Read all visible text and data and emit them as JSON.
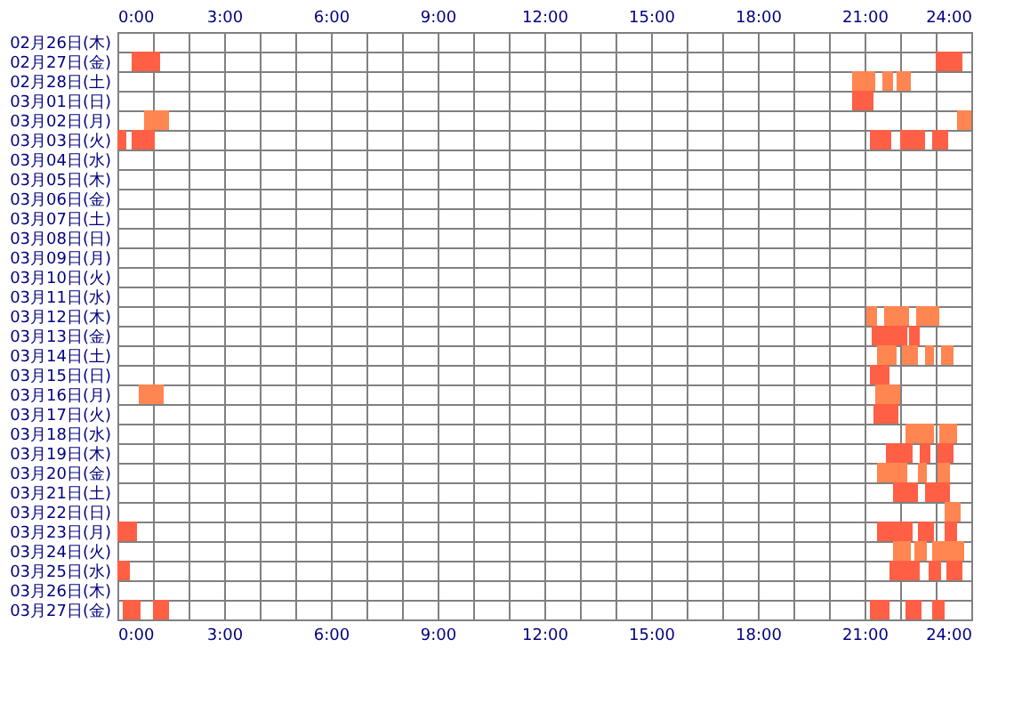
{
  "chart_data": {
    "type": "bar",
    "orientation": "horizontal",
    "grid": true,
    "categories": [
      "02月26日(木)",
      "02月27日(金)",
      "02月28日(土)",
      "03月01日(日)",
      "03月02日(月)",
      "03月03日(火)",
      "03月04日(水)",
      "03月05日(木)",
      "03月06日(金)",
      "03月07日(土)",
      "03月08日(日)",
      "03月09日(月)",
      "03月10日(火)",
      "03月11日(水)",
      "03月12日(木)",
      "03月13日(金)",
      "03月14日(土)",
      "03月15日(日)",
      "03月16日(月)",
      "03月17日(火)",
      "03月18日(水)",
      "03月19日(木)",
      "03月20日(金)",
      "03月21日(土)",
      "03月22日(日)",
      "03月23日(月)",
      "03月24日(火)",
      "03月25日(水)",
      "03月26日(木)",
      "03月27日(金)"
    ],
    "series": [
      {
        "base": [
          null,
          0.4,
          20.65,
          20.65,
          0.75,
          0,
          null,
          null,
          null,
          null,
          null,
          null,
          null,
          null,
          21.05,
          21.2,
          21.35,
          21.15,
          0.6,
          21.25,
          22.15,
          21.6,
          21.35,
          21.8,
          23.25,
          0,
          21.8,
          0,
          null,
          0.15
        ],
        "values": [
          null,
          0.8,
          0.65,
          0.6,
          0.7,
          0.25,
          null,
          null,
          null,
          null,
          null,
          null,
          null,
          null,
          0.3,
          1.0,
          0.55,
          0.55,
          0.7,
          0.7,
          0.8,
          0.75,
          0.85,
          0.7,
          0.45,
          0.55,
          0.5,
          0.35,
          null,
          0.5
        ],
        "colors": [
          "#ff5f45",
          "#ff5f45",
          "#ff8551",
          "#ff5f45",
          "#ff8551",
          "#ff5f45",
          "#ff5f45",
          "#ff5f45",
          "#ff5f45",
          "#ff5f45",
          "#ff5f45",
          "#ff5f45",
          "#ff5f45",
          "#ff5f45",
          "#ff8551",
          "#ff5f45",
          "#ff8551",
          "#ff5f45",
          "#ff8551",
          "#ff5f45",
          "#ff8551",
          "#ff5f45",
          "#ff8551",
          "#ff5f45",
          "#ff8551",
          "#ff5f45",
          "#ff8551",
          "#ff5f45",
          "#ff5f45",
          "#ff5f45"
        ]
      },
      {
        "base": [
          null,
          23.0,
          21.5,
          null,
          23.6,
          0.4,
          null,
          null,
          null,
          null,
          null,
          null,
          null,
          null,
          21.55,
          22.25,
          22.05,
          null,
          21.3,
          null,
          23.1,
          22.55,
          22.5,
          22.7,
          null,
          21.35,
          22.4,
          21.7,
          null,
          1.0
        ],
        "values": [
          null,
          0.75,
          0.3,
          null,
          0.4,
          0.65,
          null,
          null,
          null,
          null,
          null,
          null,
          null,
          null,
          0.7,
          0.3,
          0.45,
          null,
          0.7,
          null,
          0.5,
          0.3,
          0.25,
          0.7,
          null,
          1.0,
          0.35,
          0.85,
          null,
          0.45
        ],
        "colors": [
          "#ff5f45",
          "#ff5f45",
          "#ff8551",
          "#ff5f45",
          "#ff8551",
          "#ff5f45",
          "#ff5f45",
          "#ff5f45",
          "#ff5f45",
          "#ff5f45",
          "#ff5f45",
          "#ff5f45",
          "#ff5f45",
          "#ff5f45",
          "#ff8551",
          "#ff5f45",
          "#ff8551",
          "#ff5f45",
          "#ff8551",
          "#ff5f45",
          "#ff8551",
          "#ff5f45",
          "#ff8551",
          "#ff5f45",
          "#ff8551",
          "#ff5f45",
          "#ff8551",
          "#ff5f45",
          "#ff5f45",
          "#ff5f45"
        ]
      },
      {
        "base": [
          null,
          null,
          21.9,
          null,
          null,
          21.15,
          null,
          null,
          null,
          null,
          null,
          null,
          null,
          null,
          22.45,
          null,
          22.7,
          null,
          null,
          null,
          null,
          23.05,
          23.05,
          null,
          null,
          22.5,
          22.9,
          22.8,
          null,
          21.15
        ],
        "values": [
          null,
          null,
          0.4,
          null,
          null,
          0.6,
          null,
          null,
          null,
          null,
          null,
          null,
          null,
          null,
          0.65,
          null,
          0.25,
          null,
          null,
          null,
          null,
          0.45,
          0.35,
          null,
          null,
          0.45,
          0.9,
          0.35,
          null,
          0.55
        ],
        "colors": [
          "#ff5f45",
          "#ff5f45",
          "#ff8551",
          "#ff5f45",
          "#ff8551",
          "#ff5f45",
          "#ff5f45",
          "#ff5f45",
          "#ff5f45",
          "#ff5f45",
          "#ff5f45",
          "#ff5f45",
          "#ff5f45",
          "#ff5f45",
          "#ff8551",
          "#ff5f45",
          "#ff8551",
          "#ff5f45",
          "#ff8551",
          "#ff5f45",
          "#ff8551",
          "#ff5f45",
          "#ff8551",
          "#ff5f45",
          "#ff8551",
          "#ff5f45",
          "#ff8551",
          "#ff5f45",
          "#ff5f45",
          "#ff5f45"
        ]
      },
      {
        "base": [
          null,
          null,
          null,
          null,
          null,
          22.0,
          null,
          null,
          null,
          null,
          null,
          null,
          null,
          null,
          null,
          null,
          23.15,
          null,
          null,
          null,
          null,
          null,
          null,
          null,
          null,
          23.25,
          null,
          23.3,
          null,
          22.15
        ],
        "values": [
          null,
          null,
          null,
          null,
          null,
          0.7,
          null,
          null,
          null,
          null,
          null,
          null,
          null,
          null,
          null,
          null,
          0.35,
          null,
          null,
          null,
          null,
          null,
          null,
          null,
          null,
          0.35,
          null,
          0.45,
          null,
          0.45
        ],
        "colors": [
          "#ff5f45",
          "#ff5f45",
          "#ff8551",
          "#ff5f45",
          "#ff8551",
          "#ff5f45",
          "#ff5f45",
          "#ff5f45",
          "#ff5f45",
          "#ff5f45",
          "#ff5f45",
          "#ff5f45",
          "#ff5f45",
          "#ff5f45",
          "#ff8551",
          "#ff5f45",
          "#ff8551",
          "#ff5f45",
          "#ff8551",
          "#ff5f45",
          "#ff8551",
          "#ff5f45",
          "#ff8551",
          "#ff5f45",
          "#ff8551",
          "#ff5f45",
          "#ff8551",
          "#ff5f45",
          "#ff5f45",
          "#ff5f45"
        ]
      },
      {
        "base": [
          null,
          null,
          null,
          null,
          null,
          22.9,
          null,
          null,
          null,
          null,
          null,
          null,
          null,
          null,
          null,
          null,
          null,
          null,
          null,
          null,
          null,
          null,
          null,
          null,
          null,
          null,
          null,
          null,
          null,
          22.9
        ],
        "values": [
          null,
          null,
          null,
          null,
          null,
          0.45,
          null,
          null,
          null,
          null,
          null,
          null,
          null,
          null,
          null,
          null,
          null,
          null,
          null,
          null,
          null,
          null,
          null,
          null,
          null,
          null,
          null,
          null,
          null,
          0.35
        ],
        "colors": [
          "#ff5f45",
          "#ff5f45",
          "#ff8551",
          "#ff5f45",
          "#ff8551",
          "#ff5f45",
          "#ff5f45",
          "#ff5f45",
          "#ff5f45",
          "#ff5f45",
          "#ff5f45",
          "#ff5f45",
          "#ff5f45",
          "#ff5f45",
          "#ff8551",
          "#ff5f45",
          "#ff8551",
          "#ff5f45",
          "#ff8551",
          "#ff5f45",
          "#ff8551",
          "#ff5f45",
          "#ff8551",
          "#ff5f45",
          "#ff8551",
          "#ff5f45",
          "#ff8551",
          "#ff5f45",
          "#ff5f45",
          "#ff5f45"
        ]
      }
    ],
    "xlim": [
      0,
      24
    ],
    "xticks": [
      {
        "value": 0,
        "label": "0:00"
      },
      {
        "value": 1,
        "label": null
      },
      {
        "value": 2,
        "label": null
      },
      {
        "value": 3,
        "label": "3:00"
      },
      {
        "value": 4,
        "label": null
      },
      {
        "value": 5,
        "label": null
      },
      {
        "value": 6,
        "label": "6:00"
      },
      {
        "value": 7,
        "label": null
      },
      {
        "value": 8,
        "label": null
      },
      {
        "value": 9,
        "label": "9:00"
      },
      {
        "value": 10,
        "label": null
      },
      {
        "value": 11,
        "label": null
      },
      {
        "value": 12,
        "label": "12:00"
      },
      {
        "value": 13,
        "label": null
      },
      {
        "value": 14,
        "label": null
      },
      {
        "value": 15,
        "label": "15:00"
      },
      {
        "value": 16,
        "label": null
      },
      {
        "value": 17,
        "label": null
      },
      {
        "value": 18,
        "label": "18:00"
      },
      {
        "value": 19,
        "label": null
      },
      {
        "value": 20,
        "label": null
      },
      {
        "value": 21,
        "label": "21:00"
      },
      {
        "value": 22,
        "label": null
      },
      {
        "value": 23,
        "label": null
      },
      {
        "value": 24,
        "label": "24:00"
      }
    ],
    "x2lim": [
      0,
      24
    ],
    "x2ticks": [
      {
        "value": 0,
        "label": "0:00"
      },
      {
        "value": 1,
        "label": null
      },
      {
        "value": 2,
        "label": null
      },
      {
        "value": 3,
        "label": "3:00"
      },
      {
        "value": 4,
        "label": null
      },
      {
        "value": 5,
        "label": null
      },
      {
        "value": 6,
        "label": "6:00"
      },
      {
        "value": 7,
        "label": null
      },
      {
        "value": 8,
        "label": null
      },
      {
        "value": 9,
        "label": "9:00"
      },
      {
        "value": 10,
        "label": null
      },
      {
        "value": 11,
        "label": null
      },
      {
        "value": 12,
        "label": "12:00"
      },
      {
        "value": 13,
        "label": null
      },
      {
        "value": 14,
        "label": null
      },
      {
        "value": 15,
        "label": "15:00"
      },
      {
        "value": 16,
        "label": null
      },
      {
        "value": 17,
        "label": null
      },
      {
        "value": 18,
        "label": "18:00"
      },
      {
        "value": 19,
        "label": null
      },
      {
        "value": 20,
        "label": null
      },
      {
        "value": 21,
        "label": "21:00"
      },
      {
        "value": 22,
        "label": null
      },
      {
        "value": 23,
        "label": null
      },
      {
        "value": 24,
        "label": "24:00"
      }
    ]
  }
}
